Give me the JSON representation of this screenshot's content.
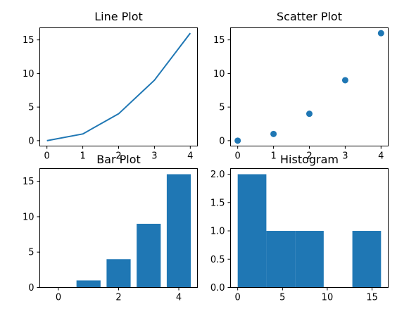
{
  "colors": {
    "primary": "#1f77b4",
    "axis": "#000000",
    "background": "#ffffff"
  },
  "chart_data": [
    {
      "type": "line",
      "title": "Line Plot",
      "x": [
        0,
        1,
        2,
        3,
        4
      ],
      "series": [
        {
          "values": [
            0,
            1,
            4,
            9,
            16
          ]
        }
      ],
      "xlim": [
        -0.2,
        4.2
      ],
      "ylim": [
        -0.8,
        16.8
      ],
      "xticks": [
        0,
        1,
        2,
        3,
        4
      ],
      "yticks": [
        0,
        5,
        10,
        15
      ],
      "grid": false
    },
    {
      "type": "scatter",
      "title": "Scatter Plot",
      "x": [
        0,
        1,
        2,
        3,
        4
      ],
      "series": [
        {
          "values": [
            0,
            1,
            4,
            9,
            16
          ]
        }
      ],
      "xlim": [
        -0.2,
        4.2
      ],
      "ylim": [
        -0.8,
        16.8
      ],
      "xticks": [
        0,
        1,
        2,
        3,
        4
      ],
      "yticks": [
        0,
        5,
        10,
        15
      ],
      "grid": false
    },
    {
      "type": "bar",
      "title": "Bar Plot",
      "x": [
        0,
        1,
        2,
        3,
        4
      ],
      "series": [
        {
          "values": [
            0,
            1,
            4,
            9,
            16
          ]
        }
      ],
      "bar_width": 0.8,
      "xlim": [
        -0.62,
        4.62
      ],
      "ylim": [
        0,
        16.8
      ],
      "xticks": [
        0,
        2,
        4
      ],
      "yticks": [
        0,
        5,
        10,
        15
      ],
      "grid": false
    },
    {
      "type": "bar",
      "subtype": "histogram",
      "title": "Histogram",
      "bin_edges": [
        0,
        3.2,
        6.4,
        9.6,
        12.8,
        16
      ],
      "counts": [
        2,
        1,
        1,
        0,
        1
      ],
      "xlim": [
        -0.8,
        16.8
      ],
      "ylim": [
        0,
        2.1
      ],
      "xticks": [
        0,
        5,
        10,
        15
      ],
      "yticks": [
        0.0,
        0.5,
        1.0,
        1.5,
        2.0
      ],
      "ytick_labels": [
        "0.0",
        "0.5",
        "1.0",
        "1.5",
        "2.0"
      ],
      "grid": false
    }
  ]
}
